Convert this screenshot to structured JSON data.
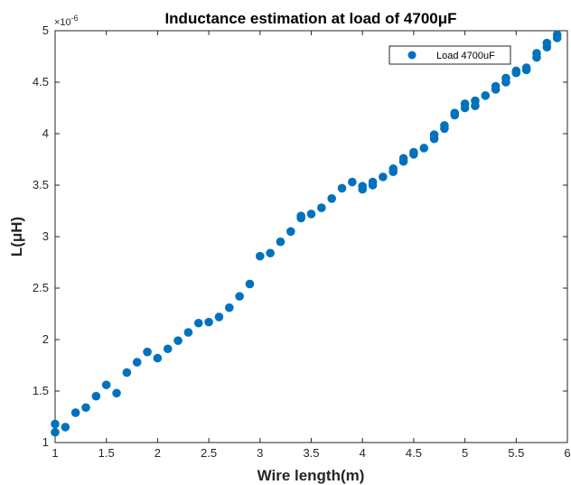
{
  "chart_data": {
    "type": "scatter",
    "title": "Inductance estimation at load of 4700μF",
    "xlabel": "Wire length(m)",
    "ylabel": "L(μH)",
    "y_exponent_label": "×10",
    "y_exponent_power": "-6",
    "xlim": [
      1,
      6
    ],
    "ylim": [
      1,
      5
    ],
    "x_ticks": [
      1,
      1.5,
      2,
      2.5,
      3,
      3.5,
      4,
      4.5,
      5,
      5.5,
      6
    ],
    "y_ticks": [
      1,
      1.5,
      2,
      2.5,
      3,
      3.5,
      4,
      4.5,
      5
    ],
    "y_scale_factor": "1e-6",
    "grid": false,
    "legend_position": "top-right",
    "marker_color": "#0072BD",
    "series": [
      {
        "name": "Load 4700uF",
        "points": [
          [
            1.0,
            1.1
          ],
          [
            1.0,
            1.18
          ],
          [
            1.1,
            1.15
          ],
          [
            1.2,
            1.29
          ],
          [
            1.3,
            1.34
          ],
          [
            1.4,
            1.45
          ],
          [
            1.5,
            1.56
          ],
          [
            1.6,
            1.48
          ],
          [
            1.7,
            1.68
          ],
          [
            1.8,
            1.78
          ],
          [
            1.9,
            1.88
          ],
          [
            2.0,
            1.82
          ],
          [
            2.1,
            1.91
          ],
          [
            2.2,
            1.99
          ],
          [
            2.3,
            2.07
          ],
          [
            2.4,
            2.16
          ],
          [
            2.5,
            2.17
          ],
          [
            2.6,
            2.22
          ],
          [
            2.7,
            2.31
          ],
          [
            2.8,
            2.42
          ],
          [
            2.9,
            2.54
          ],
          [
            3.0,
            2.81
          ],
          [
            3.1,
            2.84
          ],
          [
            3.2,
            2.95
          ],
          [
            3.3,
            3.05
          ],
          [
            3.4,
            3.18
          ],
          [
            3.4,
            3.2
          ],
          [
            3.5,
            3.22
          ],
          [
            3.6,
            3.28
          ],
          [
            3.7,
            3.37
          ],
          [
            3.8,
            3.47
          ],
          [
            3.9,
            3.53
          ],
          [
            4.0,
            3.46
          ],
          [
            4.0,
            3.49
          ],
          [
            4.1,
            3.5
          ],
          [
            4.1,
            3.53
          ],
          [
            4.2,
            3.58
          ],
          [
            4.3,
            3.63
          ],
          [
            4.3,
            3.66
          ],
          [
            4.4,
            3.73
          ],
          [
            4.4,
            3.76
          ],
          [
            4.5,
            3.8
          ],
          [
            4.5,
            3.82
          ],
          [
            4.6,
            3.86
          ],
          [
            4.7,
            3.95
          ],
          [
            4.7,
            3.99
          ],
          [
            4.8,
            4.05
          ],
          [
            4.8,
            4.08
          ],
          [
            4.9,
            4.18
          ],
          [
            4.9,
            4.2
          ],
          [
            5.0,
            4.25
          ],
          [
            5.0,
            4.29
          ],
          [
            5.1,
            4.27
          ],
          [
            5.1,
            4.32
          ],
          [
            5.2,
            4.37
          ],
          [
            5.3,
            4.43
          ],
          [
            5.3,
            4.46
          ],
          [
            5.4,
            4.5
          ],
          [
            5.4,
            4.54
          ],
          [
            5.5,
            4.59
          ],
          [
            5.5,
            4.61
          ],
          [
            5.6,
            4.62
          ],
          [
            5.6,
            4.64
          ],
          [
            5.7,
            4.74
          ],
          [
            5.7,
            4.78
          ],
          [
            5.8,
            4.84
          ],
          [
            5.8,
            4.88
          ],
          [
            5.9,
            4.93
          ],
          [
            5.9,
            4.96
          ]
        ]
      }
    ]
  }
}
